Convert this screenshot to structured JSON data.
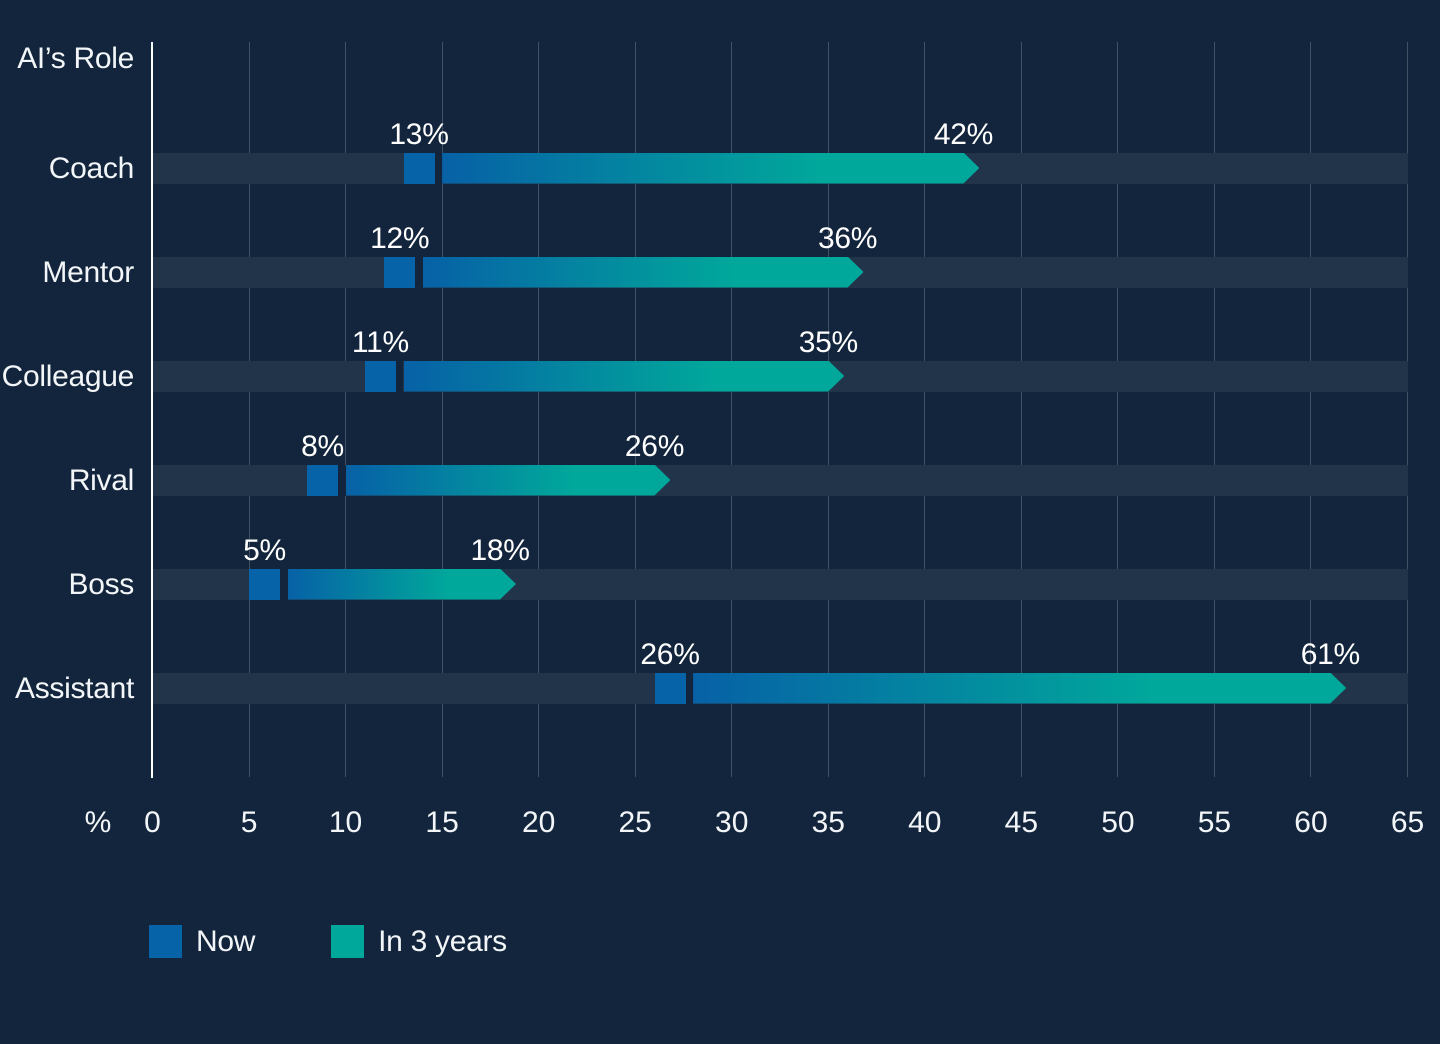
{
  "chart_data": {
    "type": "bar",
    "orientation": "horizontal",
    "axis_title": "AI’s Role",
    "categories": [
      "Coach",
      "Mentor",
      "Colleague",
      "Rival",
      "Boss",
      "Assistant"
    ],
    "series": [
      {
        "name": "Now",
        "values": [
          13,
          12,
          11,
          8,
          5,
          26
        ],
        "color": "#0663a8"
      },
      {
        "name": "In 3 years",
        "values": [
          42,
          36,
          35,
          26,
          18,
          61
        ],
        "color": "#00a79b"
      }
    ],
    "value_suffix": "%",
    "xlabel": "%",
    "x_ticks": [
      0,
      5,
      10,
      15,
      20,
      25,
      30,
      35,
      40,
      45,
      50,
      55,
      60,
      65
    ],
    "xlim": [
      0,
      65
    ],
    "grid": "vertical",
    "legend_position": "bottom",
    "colors": {
      "background": "#13253c",
      "row_band": "#22344a",
      "gridline": "rgba(255,255,255,0.20)",
      "axis_line": "#ffffff",
      "text": "#f3f6f8",
      "now_blue": "#0663a8",
      "future_teal": "#00a79b",
      "bar_gradient_start": "#0761a6"
    }
  }
}
